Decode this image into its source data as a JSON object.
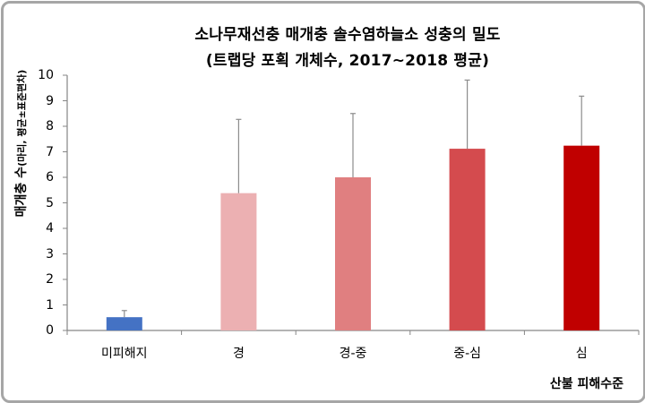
{
  "chart_data": {
    "type": "bar",
    "title": "소나무재선충 매개충 솔수염하늘소 성충의 밀도",
    "subtitle": "(트랩당 포획 개체수, 2017~2018 평균)",
    "xlabel": "산불 피해수준",
    "ylabel_main": "매개충 수",
    "ylabel_sub": "(마리, 평균±표준편차)",
    "ylabel": "매개충 수(마리, 평균±표준편차)",
    "categories": [
      "미피해지",
      "경",
      "경-중",
      "중-심",
      "심"
    ],
    "values": [
      0.52,
      5.38,
      6.0,
      7.12,
      7.24
    ],
    "error_upper": [
      0.78,
      8.27,
      8.5,
      9.81,
      9.18
    ],
    "std_dev": [
      0.26,
      2.89,
      2.5,
      2.69,
      1.94
    ],
    "colors": [
      "#4472c4",
      "#ecb0b2",
      "#e07f80",
      "#d44b4e",
      "#c00000"
    ],
    "ylim": [
      0,
      10
    ],
    "yticks": [
      "0",
      "1",
      "2",
      "3",
      "4",
      "5",
      "6",
      "7",
      "8",
      "9",
      "10"
    ],
    "grid": false,
    "legend": "none",
    "error_bar_color": "#8c8c8c",
    "axis_color": "#868686"
  }
}
